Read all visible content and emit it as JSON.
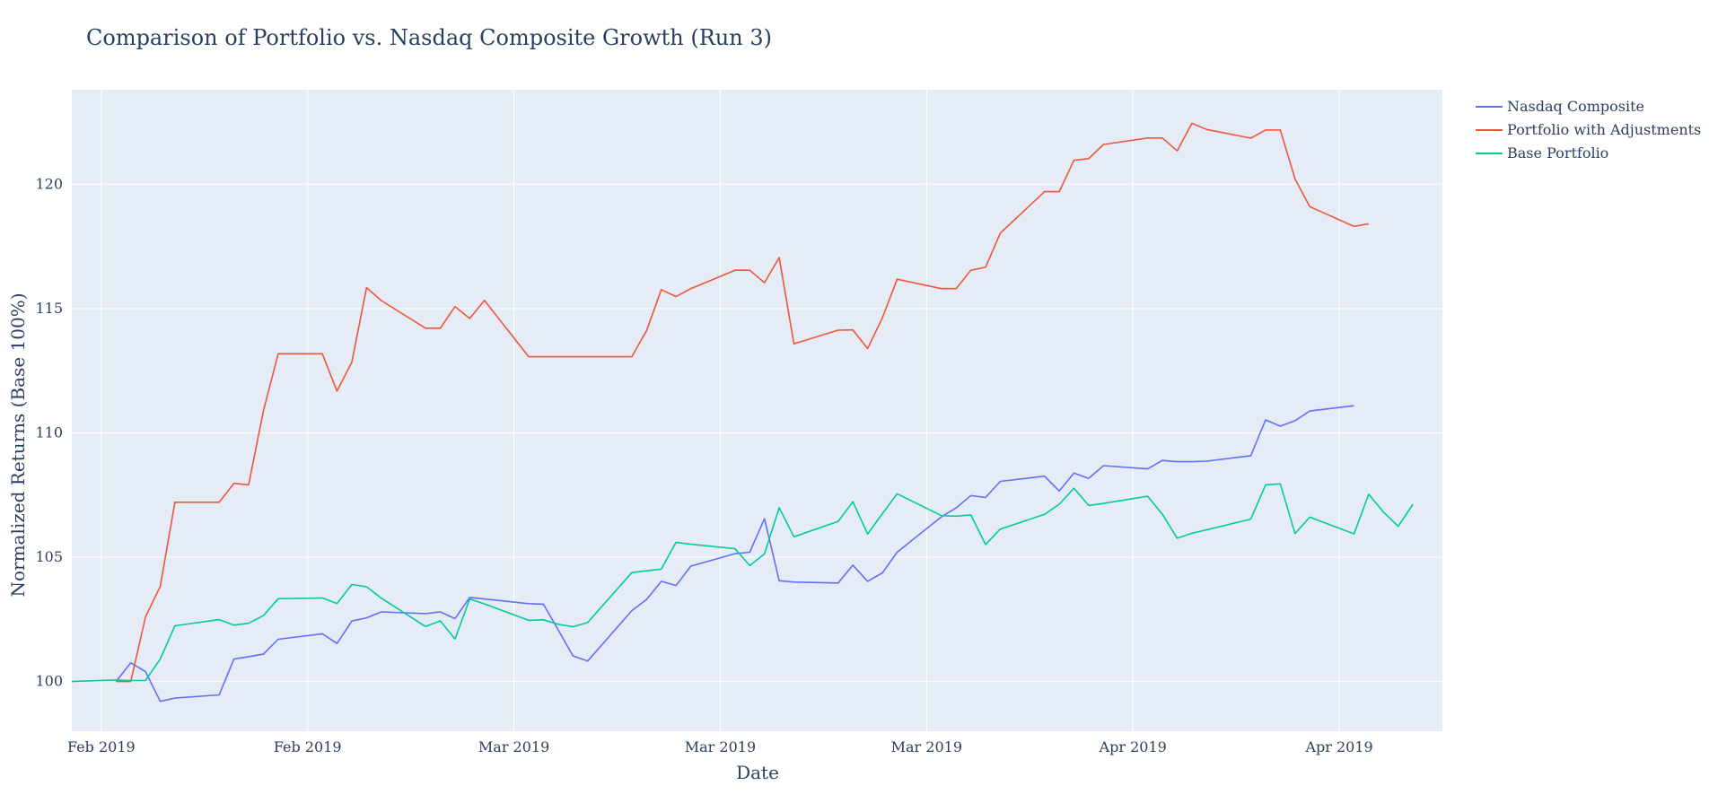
{
  "chart_data": {
    "type": "line",
    "title": "Comparison of Portfolio vs. Nasdaq Composite Growth (Run 3)",
    "xlabel": "Date",
    "ylabel": "Normalized Returns (Base 100%)",
    "ylim": [
      98,
      123.8
    ],
    "xlim": [
      "2019-01-02",
      "2019-04-05"
    ],
    "yticks": [
      100,
      105,
      110,
      115,
      120
    ],
    "xticks": [
      {
        "date": "2019-01-04",
        "label": "Feb 2019"
      },
      {
        "date": "2019-01-18",
        "label": "Feb 2019"
      },
      {
        "date": "2019-02-01",
        "label": "Mar 2019"
      },
      {
        "date": "2019-02-15",
        "label": "Mar 2019"
      },
      {
        "date": "2019-03-01",
        "label": "Mar 2019"
      },
      {
        "date": "2019-03-15",
        "label": "Apr 2019"
      },
      {
        "date": "2019-03-29",
        "label": "Apr 2019"
      }
    ],
    "grid": true,
    "legend_position": "top-right",
    "plot_bg": "#e5ecf6",
    "series": [
      {
        "name": "Nasdaq Composite",
        "color": "#636efa",
        "x": [
          "2019-01-05",
          "2019-01-06",
          "2019-01-07",
          "2019-01-08",
          "2019-01-09",
          "2019-01-12",
          "2019-01-13",
          "2019-01-14",
          "2019-01-15",
          "2019-01-16",
          "2019-01-19",
          "2019-01-20",
          "2019-01-21",
          "2019-01-22",
          "2019-01-23",
          "2019-01-26",
          "2019-01-27",
          "2019-01-28",
          "2019-01-29",
          "2019-01-30",
          "2019-02-02",
          "2019-02-03",
          "2019-02-04",
          "2019-02-05",
          "2019-02-06",
          "2019-02-09",
          "2019-02-10",
          "2019-02-11",
          "2019-02-12",
          "2019-02-13",
          "2019-02-16",
          "2019-02-17",
          "2019-02-18",
          "2019-02-19",
          "2019-02-20",
          "2019-02-23",
          "2019-02-24",
          "2019-02-25",
          "2019-02-26",
          "2019-02-27",
          "2019-03-02",
          "2019-03-03",
          "2019-03-04",
          "2019-03-05",
          "2019-03-06",
          "2019-03-09",
          "2019-03-10",
          "2019-03-11",
          "2019-03-12",
          "2019-03-13",
          "2019-03-16",
          "2019-03-17",
          "2019-03-18",
          "2019-03-19",
          "2019-03-20",
          "2019-03-23",
          "2019-03-24",
          "2019-03-25",
          "2019-03-26",
          "2019-03-27",
          "2019-03-30",
          "2019-03-31",
          "2019-04-01"
        ],
        "y": [
          100.0,
          100.75,
          100.4,
          99.2,
          99.33,
          99.46,
          100.9,
          101.0,
          101.1,
          101.7,
          101.92,
          101.53,
          102.43,
          102.56,
          102.8,
          102.73,
          102.8,
          102.53,
          103.38,
          103.32,
          103.13,
          103.11,
          102.08,
          101.03,
          100.82,
          102.85,
          103.3,
          104.03,
          103.86,
          104.64,
          105.14,
          105.2,
          106.55,
          104.05,
          104.0,
          103.96,
          104.68,
          104.03,
          104.37,
          105.2,
          106.62,
          106.98,
          107.48,
          107.4,
          108.05,
          108.26,
          107.66,
          108.38,
          108.17,
          108.68,
          108.55,
          108.89,
          108.84,
          108.84,
          108.86,
          109.08,
          110.52,
          110.27,
          110.49,
          110.88,
          111.09,
          null,
          null
        ],
        "y_note": ""
      },
      {
        "name": "Portfolio with Adjustments",
        "color": "#ef553b",
        "x": [
          "2019-01-05",
          "2019-01-06",
          "2019-01-07",
          "2019-01-08",
          "2019-01-09",
          "2019-01-12",
          "2019-01-13",
          "2019-01-14",
          "2019-01-15",
          "2019-01-16",
          "2019-01-19",
          "2019-01-20",
          "2019-01-21",
          "2019-01-22",
          "2019-01-23",
          "2019-01-26",
          "2019-01-27",
          "2019-01-28",
          "2019-01-29",
          "2019-01-30",
          "2019-02-02",
          "2019-02-03",
          "2019-02-04",
          "2019-02-05",
          "2019-02-06",
          "2019-02-09",
          "2019-02-10",
          "2019-02-11",
          "2019-02-12",
          "2019-02-13",
          "2019-02-16",
          "2019-02-17",
          "2019-02-18",
          "2019-02-19",
          "2019-02-20",
          "2019-02-23",
          "2019-02-24",
          "2019-02-25",
          "2019-02-26",
          "2019-02-27",
          "2019-03-02",
          "2019-03-03",
          "2019-03-04",
          "2019-03-05",
          "2019-03-06",
          "2019-03-09",
          "2019-03-10",
          "2019-03-11",
          "2019-03-12",
          "2019-03-13",
          "2019-03-16",
          "2019-03-17",
          "2019-03-18",
          "2019-03-19",
          "2019-03-20",
          "2019-03-23",
          "2019-03-24",
          "2019-03-25",
          "2019-03-26",
          "2019-03-27",
          "2019-03-30",
          "2019-03-31"
        ],
        "y": [
          100.0,
          100.0,
          102.6,
          103.82,
          107.21,
          107.21,
          107.97,
          107.91,
          110.89,
          113.18,
          113.18,
          111.68,
          112.85,
          115.84,
          115.32,
          114.21,
          114.21,
          115.08,
          114.6,
          115.33,
          113.06,
          113.06,
          113.06,
          113.06,
          113.06,
          113.06,
          114.12,
          115.76,
          115.48,
          115.8,
          116.54,
          116.54,
          116.04,
          117.05,
          113.58,
          114.13,
          114.14,
          113.39,
          114.63,
          116.18,
          115.8,
          115.8,
          116.54,
          116.66,
          118.03,
          119.7,
          119.7,
          120.96,
          121.03,
          121.6,
          121.86,
          121.86,
          121.34,
          122.45,
          122.2,
          121.85,
          122.18,
          122.18,
          120.21,
          119.1,
          118.3,
          118.41
        ],
        "y_note": ""
      },
      {
        "name": "Base Portfolio",
        "color": "#00cc96",
        "x": [
          "2019-01-02",
          "2019-01-05",
          "2019-01-06",
          "2019-01-07",
          "2019-01-08",
          "2019-01-09",
          "2019-01-12",
          "2019-01-13",
          "2019-01-14",
          "2019-01-15",
          "2019-01-16",
          "2019-01-19",
          "2019-01-20",
          "2019-01-21",
          "2019-01-22",
          "2019-01-23",
          "2019-01-26",
          "2019-01-27",
          "2019-01-28",
          "2019-01-29",
          "2019-01-30",
          "2019-02-02",
          "2019-02-03",
          "2019-02-04",
          "2019-02-05",
          "2019-02-06",
          "2019-02-09",
          "2019-02-10",
          "2019-02-11",
          "2019-02-12",
          "2019-02-13",
          "2019-02-16",
          "2019-02-17",
          "2019-02-18",
          "2019-02-19",
          "2019-02-20",
          "2019-02-23",
          "2019-02-24",
          "2019-02-25",
          "2019-02-26",
          "2019-02-27",
          "2019-03-02",
          "2019-03-03",
          "2019-03-04",
          "2019-03-05",
          "2019-03-06",
          "2019-03-09",
          "2019-03-10",
          "2019-03-11",
          "2019-03-12",
          "2019-03-13",
          "2019-03-16",
          "2019-03-17",
          "2019-03-18",
          "2019-03-19",
          "2019-03-20",
          "2019-03-23",
          "2019-03-24",
          "2019-03-25",
          "2019-03-26",
          "2019-03-27",
          "2019-03-30",
          "2019-03-31",
          "2019-04-01",
          "2019-04-02",
          "2019-04-03"
        ],
        "y": [
          100.0,
          100.06,
          100.04,
          100.04,
          100.9,
          102.24,
          102.49,
          102.27,
          102.34,
          102.65,
          103.33,
          103.36,
          103.14,
          103.9,
          103.81,
          103.35,
          102.21,
          102.44,
          101.71,
          103.32,
          103.12,
          102.46,
          102.48,
          102.3,
          102.2,
          102.37,
          104.38,
          104.45,
          104.52,
          105.6,
          105.52,
          105.34,
          104.66,
          105.13,
          106.99,
          105.82,
          106.44,
          107.23,
          105.93,
          106.75,
          107.55,
          106.67,
          106.65,
          106.7,
          105.51,
          106.13,
          106.72,
          107.13,
          107.77,
          107.08,
          107.16,
          107.45,
          106.73,
          105.76,
          105.96,
          106.1,
          106.53,
          107.91,
          107.95,
          105.95,
          106.61,
          105.94,
          107.53,
          106.81,
          106.24,
          107.13
        ],
        "y_note": ""
      }
    ]
  }
}
